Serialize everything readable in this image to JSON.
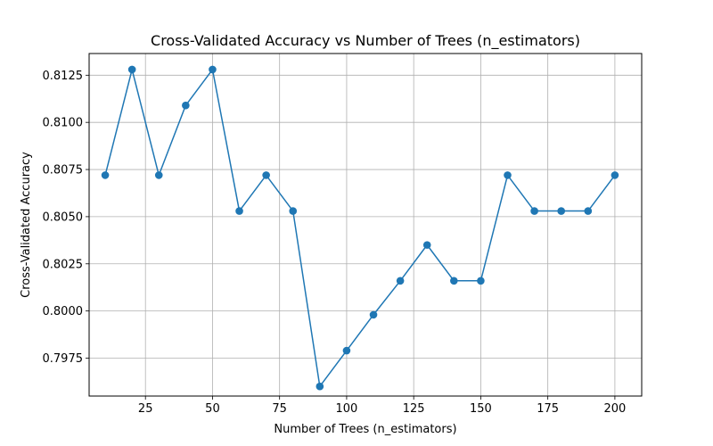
{
  "chart_data": {
    "type": "line",
    "title": "Cross-Validated Accuracy vs Number of Trees (n_estimators)",
    "xlabel": "Number of Trees (n_estimators)",
    "ylabel": "Cross-Validated Accuracy",
    "xlim": [
      4,
      210
    ],
    "ylim": [
      0.79549,
      0.81365
    ],
    "xticks": [
      25,
      50,
      75,
      100,
      125,
      150,
      175,
      200
    ],
    "xtick_labels": [
      "25",
      "50",
      "75",
      "100",
      "125",
      "150",
      "175",
      "200"
    ],
    "yticks": [
      0.7975,
      0.8,
      0.8025,
      0.805,
      0.8075,
      0.81,
      0.8125
    ],
    "ytick_labels": [
      "0.7975",
      "0.8000",
      "0.8025",
      "0.8050",
      "0.8075",
      "0.8100",
      "0.8125"
    ],
    "grid": true,
    "series": [
      {
        "color": "#1f77b4",
        "marker": "circle",
        "x": [
          10,
          20,
          30,
          40,
          50,
          60,
          70,
          80,
          90,
          100,
          110,
          120,
          130,
          140,
          150,
          160,
          170,
          180,
          190,
          200
        ],
        "y": [
          0.8072,
          0.8128,
          0.8072,
          0.8109,
          0.8128,
          0.8053,
          0.8072,
          0.8053,
          0.796,
          0.7979,
          0.7998,
          0.8016,
          0.8035,
          0.8016,
          0.8016,
          0.8072,
          0.8053,
          0.8053,
          0.8053,
          0.8072
        ]
      }
    ]
  }
}
